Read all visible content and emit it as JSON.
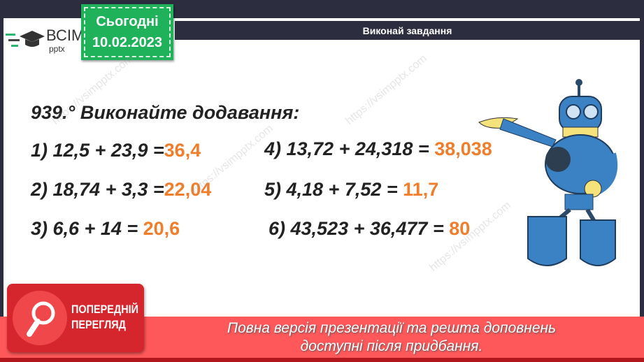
{
  "header": {
    "logo_main": "ВСІМ",
    "logo_sub": "pptx",
    "tag_line1": "Сьогодні",
    "tag_line2": "10.02.2023",
    "title": "Виконай завдання"
  },
  "task": {
    "heading": "939.° Виконайте додавання:",
    "items": [
      {
        "expr": "1) 12,5 + 23,9 =",
        "answer": "36,4"
      },
      {
        "expr": "2) 18,74 + 3,3 =",
        "answer": "22,04"
      },
      {
        "expr": "3) 6,6 + 14 = ",
        "answer": "20,6"
      },
      {
        "expr": "4) 13,72 + 24,318 = ",
        "answer": "38,038"
      },
      {
        "expr": "5) 4,18 + 7,52 = ",
        "answer": "11,7"
      },
      {
        "expr": "6) 43,523 + 36,477 = ",
        "answer": "80"
      }
    ]
  },
  "preview": {
    "badge_line1": "ПОПЕРЕДНІЙ",
    "badge_line2": "ПЕРЕГЛЯД",
    "message_line1": "Повна версія презентації та решта доповнень",
    "message_line2": "доступні після придбання."
  },
  "colors": {
    "answer": "#f07d2a",
    "tag": "#1fb25a",
    "banner": "#ff585a",
    "dark": "#2c2e3f"
  }
}
